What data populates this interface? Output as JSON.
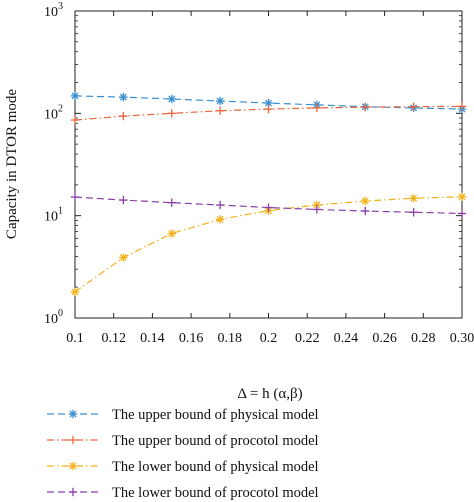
{
  "chart_data": {
    "type": "line",
    "xlabel": "Δ = h (α,β)",
    "ylabel": "Capacity in DTOR mode",
    "yscale": "log",
    "xlim": [
      0.1,
      0.3
    ],
    "ylim": [
      1,
      1000
    ],
    "grid": false,
    "legend_position": "bottom",
    "x": [
      0.1,
      0.125,
      0.15,
      0.175,
      0.2,
      0.225,
      0.25,
      0.275,
      0.3
    ],
    "x_ticks": [
      0.1,
      0.12,
      0.14,
      0.16,
      0.18,
      0.2,
      0.22,
      0.24,
      0.26,
      0.28,
      0.3
    ],
    "x_tick_labels": [
      "0.1",
      "0.12",
      "0.14",
      "0.16",
      "0.18",
      "0.2",
      "0.22",
      "0.24",
      "0.26",
      "0.28",
      "0.30"
    ],
    "y_ticks": [
      {
        "base": "10",
        "exp": "0",
        "value": 1
      },
      {
        "base": "10",
        "exp": "1",
        "value": 10
      },
      {
        "base": "10",
        "exp": "2",
        "value": 100
      },
      {
        "base": "10",
        "exp": "3",
        "value": 1000
      }
    ],
    "series": [
      {
        "name": "The upper bound of physical model",
        "color": "#3a8fd1",
        "dash": "7,4",
        "marker": "asterisk",
        "values": [
          148,
          144,
          138,
          132,
          126,
          121,
          116,
          113,
          110
        ]
      },
      {
        "name": "The upper bound of procotol model",
        "color": "#e8643a",
        "dash": "7,3,1.5,3",
        "marker": "plus",
        "values": [
          86,
          94,
          100,
          106,
          110,
          113,
          115,
          116,
          117
        ]
      },
      {
        "name": "The lower bound of physical model",
        "color": "#f2b21c",
        "dash": "7,3,1.5,3",
        "marker": "asterisk",
        "values": [
          1.8,
          3.9,
          6.7,
          9.2,
          11.2,
          12.7,
          13.9,
          14.8,
          15.3
        ]
      },
      {
        "name": "The lower bound of procotol model",
        "color": "#8a3fa8",
        "dash": "7,4",
        "marker": "plus",
        "values": [
          15.2,
          14.2,
          13.4,
          12.7,
          12.0,
          11.5,
          11.1,
          10.8,
          10.5
        ]
      }
    ]
  }
}
